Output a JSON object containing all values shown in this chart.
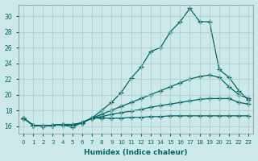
{
  "xlabel": "Humidex (Indice chaleur)",
  "ylabel": "",
  "bg_color": "#cce8e8",
  "grid_color": "#aacccc",
  "line_color": "#006666",
  "xlim": [
    -0.5,
    23.5
  ],
  "ylim": [
    15.0,
    31.5
  ],
  "xticks": [
    0,
    1,
    2,
    3,
    4,
    5,
    6,
    7,
    8,
    9,
    10,
    11,
    12,
    13,
    14,
    15,
    16,
    17,
    18,
    19,
    20,
    21,
    22,
    23
  ],
  "yticks": [
    16,
    18,
    20,
    22,
    24,
    26,
    28,
    30
  ],
  "series": [
    {
      "x": [
        0,
        1,
        2,
        3,
        4,
        5,
        6,
        7,
        8,
        9,
        10,
        11,
        12,
        13,
        14,
        15,
        16,
        17,
        18,
        19,
        20,
        21,
        22,
        23
      ],
      "y": [
        17.0,
        16.1,
        16.0,
        16.1,
        16.2,
        16.2,
        16.4,
        17.0,
        18.0,
        19.0,
        20.3,
        22.1,
        23.5,
        25.5,
        26.0,
        28.0,
        29.3,
        31.0,
        29.3,
        29.3,
        23.2,
        22.2,
        20.5,
        19.3
      ]
    },
    {
      "x": [
        0,
        1,
        2,
        3,
        4,
        5,
        6,
        7,
        8,
        9,
        10,
        11,
        12,
        13,
        14,
        15,
        16,
        17,
        18,
        19,
        20,
        21,
        22,
        23
      ],
      "y": [
        17.0,
        16.1,
        16.0,
        16.1,
        16.2,
        16.2,
        16.4,
        17.0,
        17.5,
        18.0,
        18.5,
        19.0,
        19.5,
        20.0,
        20.5,
        21.0,
        21.5,
        22.0,
        22.3,
        22.5,
        22.2,
        21.0,
        20.0,
        19.5
      ]
    },
    {
      "x": [
        0,
        1,
        2,
        3,
        4,
        5,
        6,
        7,
        8,
        9,
        10,
        11,
        12,
        13,
        14,
        15,
        16,
        17,
        18,
        19,
        20,
        21,
        22,
        23
      ],
      "y": [
        17.0,
        16.1,
        16.0,
        16.1,
        16.2,
        16.0,
        16.4,
        17.0,
        17.2,
        17.5,
        17.7,
        17.9,
        18.1,
        18.4,
        18.6,
        18.8,
        19.0,
        19.2,
        19.4,
        19.5,
        19.5,
        19.5,
        19.0,
        18.8
      ]
    },
    {
      "x": [
        0,
        1,
        2,
        3,
        4,
        5,
        6,
        7,
        8,
        9,
        10,
        11,
        12,
        13,
        14,
        15,
        16,
        17,
        18,
        19,
        20,
        21,
        22,
        23
      ],
      "y": [
        17.0,
        16.1,
        16.0,
        16.1,
        16.2,
        15.8,
        16.5,
        17.0,
        17.0,
        17.0,
        17.0,
        17.1,
        17.1,
        17.2,
        17.2,
        17.3,
        17.3,
        17.3,
        17.3,
        17.3,
        17.3,
        17.3,
        17.3,
        17.3
      ]
    }
  ]
}
